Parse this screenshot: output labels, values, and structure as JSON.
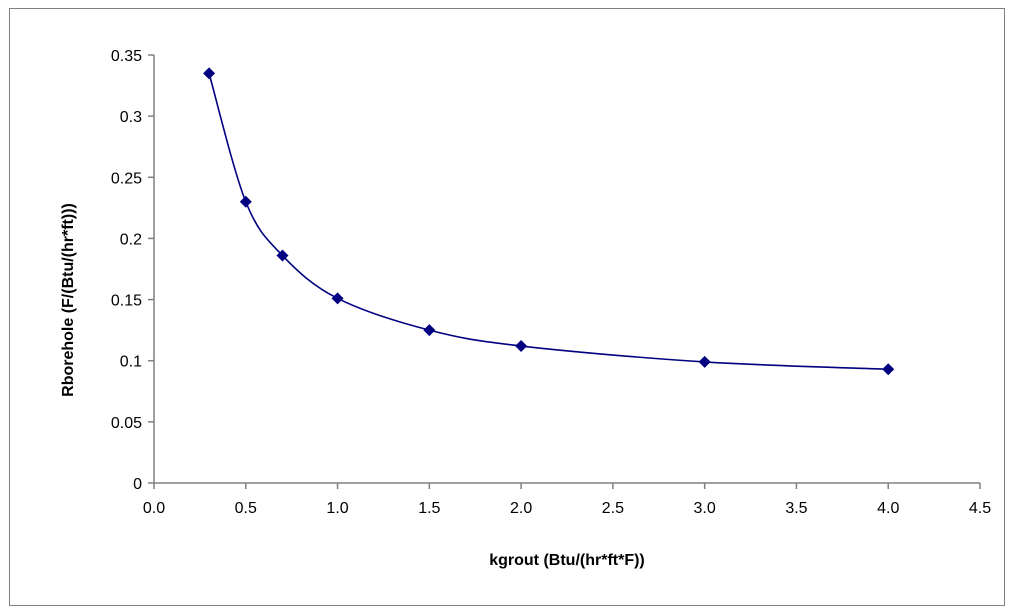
{
  "chart_data": {
    "type": "scatter",
    "title": "",
    "xlabel": "kgrout (Btu/(hr*ft*F))",
    "ylabel": "Rborehole (F/(Btu/(hr*ft)))",
    "xlim": [
      0,
      4.5
    ],
    "ylim": [
      0,
      0.35
    ],
    "x_ticks": [
      0,
      0.5,
      1,
      1.5,
      2,
      2.5,
      3,
      3.5,
      4,
      4.5
    ],
    "x_tick_labels": [
      "0.0",
      "0.5",
      "1.0",
      "1.5",
      "2.0",
      "2.5",
      "3.0",
      "3.5",
      "4.0",
      "4.5"
    ],
    "y_ticks": [
      0,
      0.05,
      0.1,
      0.15,
      0.2,
      0.25,
      0.3,
      0.35
    ],
    "y_tick_labels": [
      "0",
      "0.05",
      "0.1",
      "0.15",
      "0.2",
      "0.25",
      "0.3",
      "0.35"
    ],
    "grid": false,
    "legend": "none",
    "series": [
      {
        "x": [
          0.3,
          0.5,
          0.7,
          1.0,
          1.5,
          2.0,
          3.0,
          4.0
        ],
        "y": [
          0.335,
          0.23,
          0.186,
          0.151,
          0.125,
          0.112,
          0.099,
          0.093
        ],
        "color": "#000080",
        "marker": "diamond",
        "line": "smooth"
      }
    ]
  }
}
